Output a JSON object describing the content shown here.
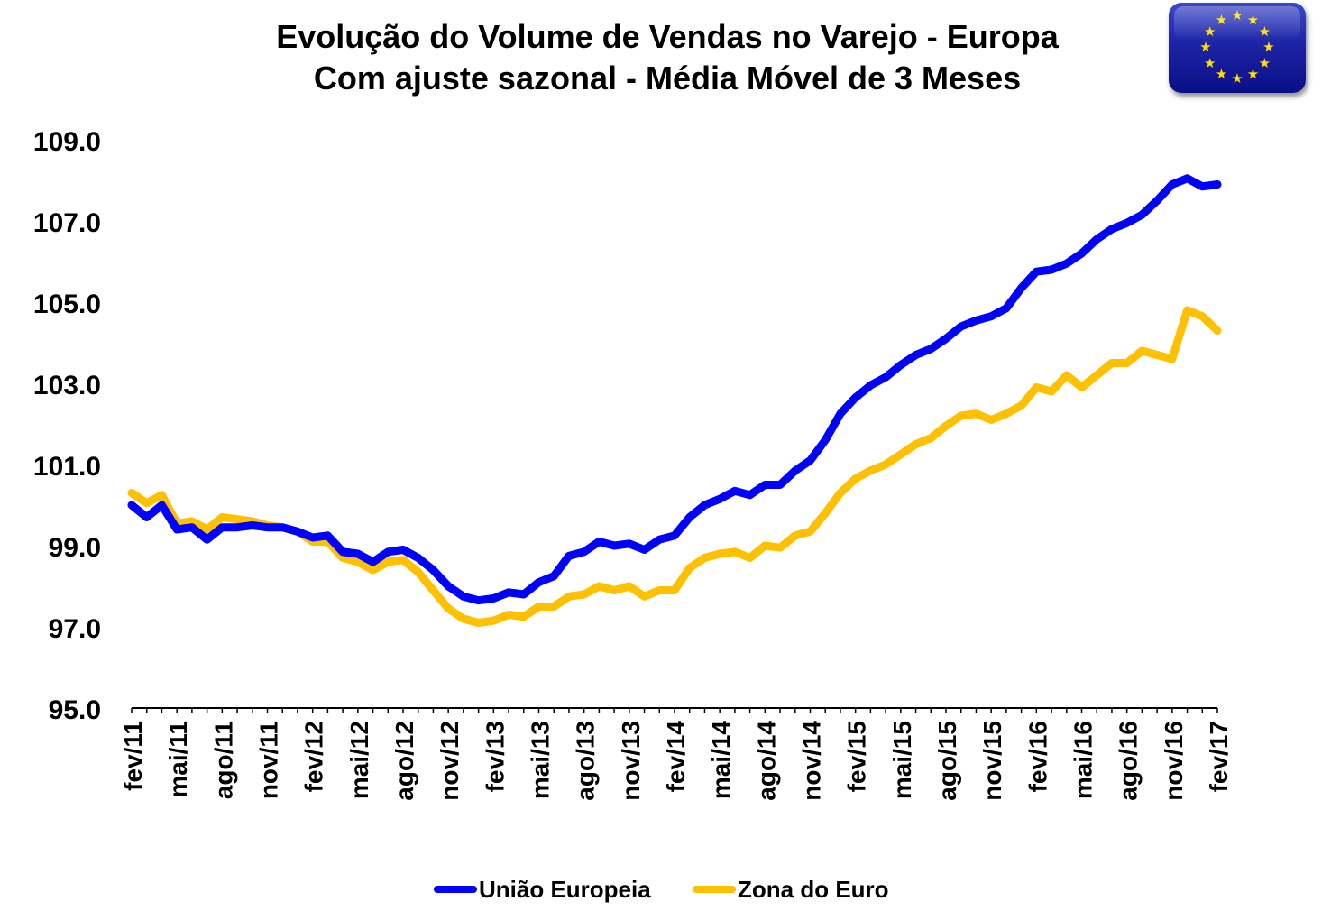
{
  "title": {
    "line1": "Evolução do Volume de Vendas no Varejo - Europa",
    "line2": "Com ajuste sazonal - Média Móvel de 3 Meses"
  },
  "flag": {
    "icon": "eu-flag-icon",
    "background": "#1d24a6",
    "star_color": "#ffdd00",
    "star_glyph": "★"
  },
  "chart_data": {
    "type": "line",
    "title": "Evolução do Volume de Vendas no Varejo - Europa / Com ajuste sazonal - Média Móvel de 3 Meses",
    "xlabel": "",
    "ylabel": "",
    "ylim": [
      95.0,
      109.0
    ],
    "yticks": [
      "109.0",
      "107.0",
      "105.0",
      "103.0",
      "101.0",
      "99.0",
      "97.0",
      "95.0"
    ],
    "xtick_labels": [
      "fev/11",
      "mai/11",
      "ago/11",
      "nov/11",
      "fev/12",
      "mai/12",
      "ago/12",
      "nov/12",
      "fev/13",
      "mai/13",
      "ago/13",
      "nov/13",
      "fev/14",
      "mai/14",
      "ago/14",
      "nov/14",
      "fev/15",
      "mai/15",
      "ago/15",
      "nov/15",
      "fev/16",
      "mai/16",
      "ago/16",
      "nov/16",
      "fev/17"
    ],
    "x": [
      "fev/11",
      "mar/11",
      "abr/11",
      "mai/11",
      "jun/11",
      "jul/11",
      "ago/11",
      "set/11",
      "out/11",
      "nov/11",
      "dez/11",
      "jan/12",
      "fev/12",
      "mar/12",
      "abr/12",
      "mai/12",
      "jun/12",
      "jul/12",
      "ago/12",
      "set/12",
      "out/12",
      "nov/12",
      "dez/12",
      "jan/13",
      "fev/13",
      "mar/13",
      "abr/13",
      "mai/13",
      "jun/13",
      "jul/13",
      "ago/13",
      "set/13",
      "out/13",
      "nov/13",
      "dez/13",
      "jan/14",
      "fev/14",
      "mar/14",
      "abr/14",
      "mai/14",
      "jun/14",
      "jul/14",
      "ago/14",
      "set/14",
      "out/14",
      "nov/14",
      "dez/14",
      "jan/15",
      "fev/15",
      "mar/15",
      "abr/15",
      "mai/15",
      "jun/15",
      "jul/15",
      "ago/15",
      "set/15",
      "out/15",
      "nov/15",
      "dez/15",
      "jan/16",
      "fev/16",
      "mar/16",
      "abr/16",
      "mai/16",
      "jun/16",
      "jul/16",
      "ago/16",
      "set/16",
      "out/16",
      "nov/16",
      "dez/16",
      "jan/17",
      "fev/17"
    ],
    "grid": false,
    "legend_position": "bottom",
    "series": [
      {
        "name": "União Europeia",
        "color": "#0000ff",
        "values": [
          100.0,
          99.7,
          100.0,
          99.4,
          99.45,
          99.15,
          99.45,
          99.45,
          99.5,
          99.45,
          99.45,
          99.35,
          99.2,
          99.25,
          98.85,
          98.8,
          98.6,
          98.85,
          98.9,
          98.7,
          98.4,
          98.0,
          97.75,
          97.65,
          97.7,
          97.85,
          97.8,
          98.1,
          98.25,
          98.75,
          98.85,
          99.1,
          99.0,
          99.05,
          98.9,
          99.15,
          99.25,
          99.7,
          100.0,
          100.15,
          100.35,
          100.25,
          100.5,
          100.5,
          100.85,
          101.1,
          101.6,
          102.25,
          102.65,
          102.95,
          103.15,
          103.45,
          103.7,
          103.85,
          104.1,
          104.4,
          104.55,
          104.65,
          104.85,
          105.35,
          105.75,
          105.8,
          105.95,
          106.2,
          106.55,
          106.8,
          106.95,
          107.15,
          107.5,
          107.9,
          108.05,
          107.85,
          107.9
        ]
      },
      {
        "name": "Zona do Euro",
        "color": "#ffc000",
        "values": [
          100.3,
          100.05,
          100.25,
          99.55,
          99.6,
          99.4,
          99.7,
          99.65,
          99.6,
          99.5,
          99.45,
          99.35,
          99.1,
          99.1,
          98.7,
          98.6,
          98.4,
          98.6,
          98.65,
          98.35,
          97.9,
          97.45,
          97.2,
          97.1,
          97.15,
          97.3,
          97.25,
          97.5,
          97.5,
          97.75,
          97.8,
          98.0,
          97.9,
          98.0,
          97.75,
          97.9,
          97.9,
          98.45,
          98.7,
          98.8,
          98.85,
          98.7,
          99.0,
          98.95,
          99.25,
          99.35,
          99.8,
          100.3,
          100.65,
          100.85,
          101.0,
          101.25,
          101.5,
          101.65,
          101.95,
          102.2,
          102.25,
          102.1,
          102.25,
          102.45,
          102.9,
          102.8,
          103.2,
          102.9,
          103.2,
          103.5,
          103.5,
          103.8,
          103.7,
          103.6,
          104.8,
          104.65,
          104.3
        ]
      }
    ]
  }
}
